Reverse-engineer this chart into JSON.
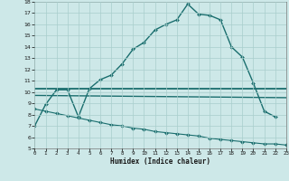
{
  "xlabel": "Humidex (Indice chaleur)",
  "xlim": [
    0,
    23
  ],
  "ylim": [
    5,
    18
  ],
  "xticks": [
    0,
    1,
    2,
    3,
    4,
    5,
    6,
    7,
    8,
    9,
    10,
    11,
    12,
    13,
    14,
    15,
    16,
    17,
    18,
    19,
    20,
    21,
    22,
    23
  ],
  "yticks": [
    5,
    6,
    7,
    8,
    9,
    10,
    11,
    12,
    13,
    14,
    15,
    16,
    17,
    18
  ],
  "bg_color": "#cde8e8",
  "grid_color": "#a8cecc",
  "line_color": "#1a6e6e",
  "line1_x": [
    0,
    1,
    2,
    3,
    4,
    5,
    6,
    7,
    8,
    9,
    10,
    11,
    12,
    13,
    14,
    15,
    16,
    17,
    18,
    19,
    20,
    21,
    22
  ],
  "line1_y": [
    7.0,
    8.9,
    10.2,
    10.2,
    7.8,
    10.3,
    11.1,
    11.5,
    12.5,
    13.8,
    14.4,
    15.5,
    16.0,
    16.4,
    17.8,
    16.9,
    16.8,
    16.4,
    14.0,
    13.1,
    10.8,
    8.3,
    7.8
  ],
  "line2_x": [
    0,
    23
  ],
  "line2_y": [
    10.3,
    10.3
  ],
  "line3_x": [
    0,
    23
  ],
  "line3_y": [
    9.7,
    9.5
  ],
  "line4_x": [
    0,
    1,
    2,
    3,
    4,
    5,
    6,
    7,
    8,
    9,
    10,
    11,
    12,
    13,
    14,
    15,
    16,
    17,
    18,
    19,
    20,
    21,
    22,
    23
  ],
  "line4_y": [
    8.5,
    8.3,
    8.1,
    7.9,
    7.7,
    7.5,
    7.3,
    7.1,
    7.0,
    6.8,
    6.7,
    6.5,
    6.4,
    6.3,
    6.2,
    6.1,
    5.9,
    5.8,
    5.7,
    5.6,
    5.5,
    5.4,
    5.4,
    5.3
  ]
}
